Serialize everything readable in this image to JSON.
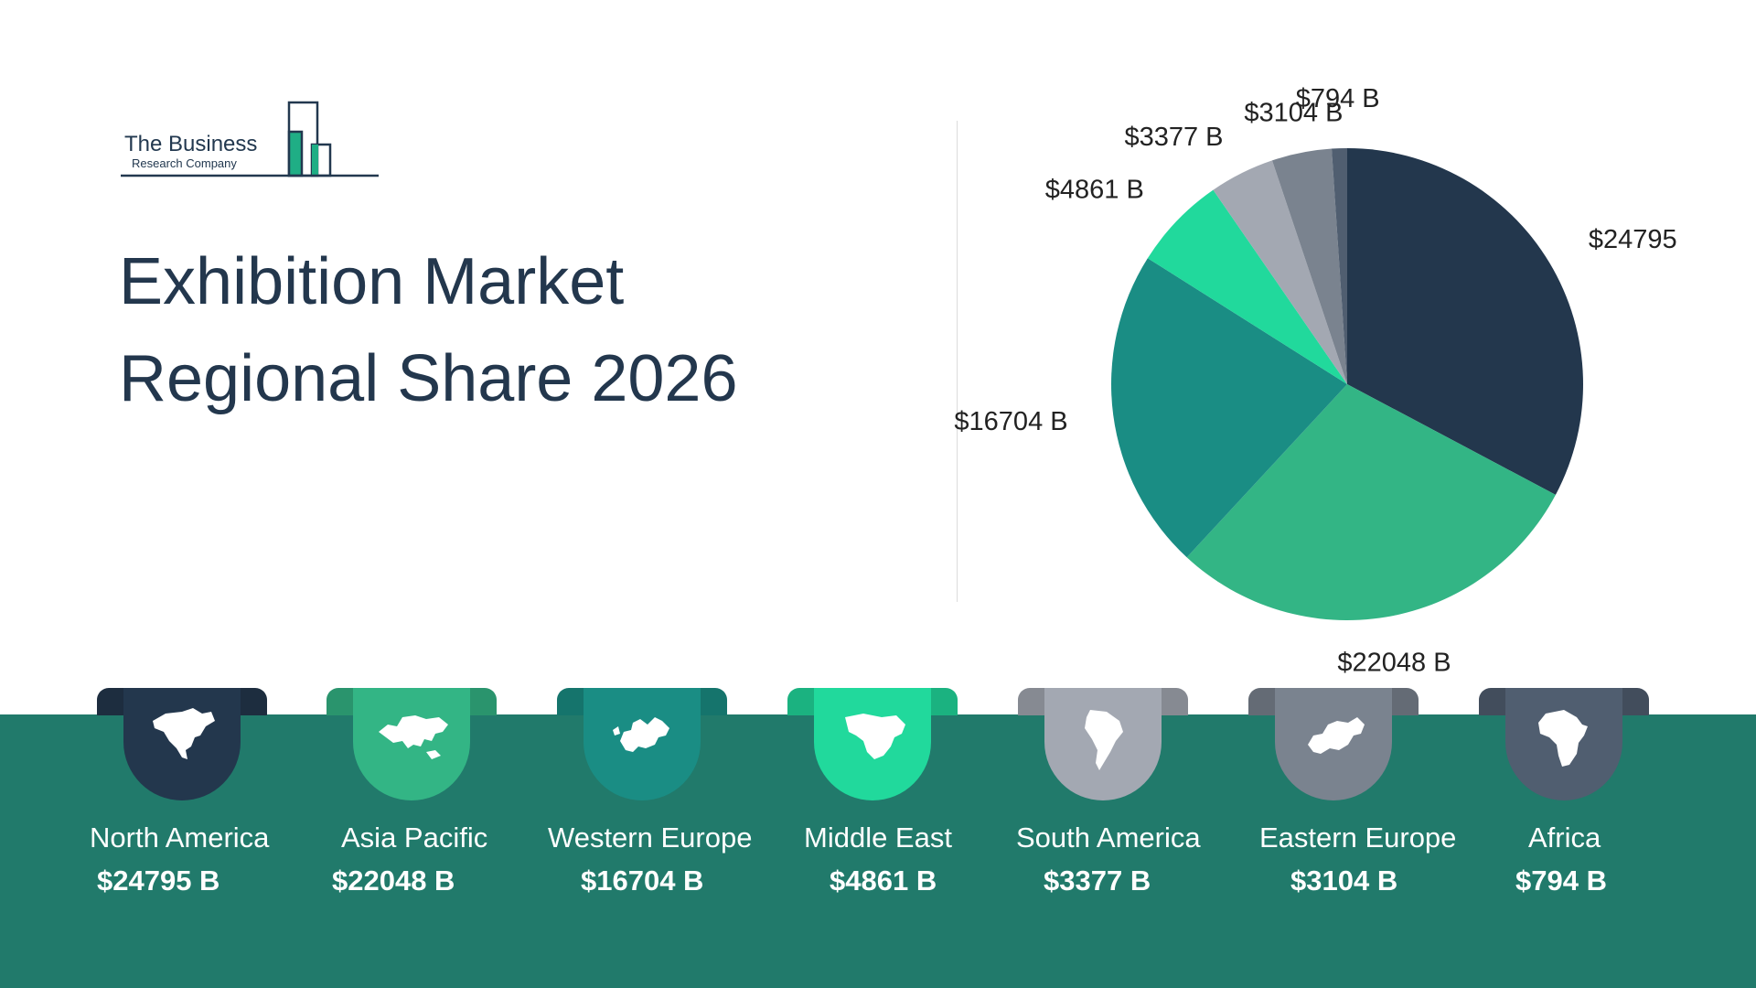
{
  "logo": {
    "line1": "The Business",
    "line2": "Research Company"
  },
  "title": {
    "line1": "Exhibition Market",
    "line2": "Regional Share 2026"
  },
  "colors": {
    "band": "#217a6b",
    "north_america": "#23374d",
    "asia_pacific": "#33b585",
    "western_europe": "#1a8d84",
    "middle_east": "#21d99c",
    "south_america": "#a3a8b2",
    "eastern_europe": "#7a838f",
    "africa": "#505e70"
  },
  "chart_data": {
    "type": "pie",
    "title": "Exhibition Market Regional Share 2026",
    "unit": "B",
    "slices": [
      {
        "label": "North America",
        "value": 24795,
        "display": "$24795 B",
        "color": "#23374d"
      },
      {
        "label": "Asia Pacific",
        "value": 22048,
        "display": "$22048 B",
        "color": "#33b585"
      },
      {
        "label": "Western Europe",
        "value": 16704,
        "display": "$16704 B",
        "color": "#1a8d84"
      },
      {
        "label": "Middle East",
        "value": 4861,
        "display": "$4861 B",
        "color": "#21d99c"
      },
      {
        "label": "South America",
        "value": 3377,
        "display": "$3377 B",
        "color": "#a3a8b2"
      },
      {
        "label": "Eastern Europe",
        "value": 3104,
        "display": "$3104 B",
        "color": "#7a838f"
      },
      {
        "label": "Africa",
        "value": 794,
        "display": "$794 B",
        "color": "#505e70"
      }
    ]
  },
  "regions": [
    {
      "name": "North America",
      "value": "$24795 B",
      "icon": "north-america-map-icon",
      "color": "#23374d"
    },
    {
      "name": "Asia Pacific",
      "value": "$22048 B",
      "icon": "asia-pacific-map-icon",
      "color": "#33b585"
    },
    {
      "name": "Western Europe",
      "value": "$16704 B",
      "icon": "western-europe-map-icon",
      "color": "#1a8d84"
    },
    {
      "name": "Middle East",
      "value": "$4861 B",
      "icon": "middle-east-map-icon",
      "color": "#21d99c"
    },
    {
      "name": "South America",
      "value": "$3377 B",
      "icon": "south-america-map-icon",
      "color": "#a3a8b2"
    },
    {
      "name": "Eastern Europe",
      "value": "$3104 B",
      "icon": "eastern-europe-map-icon",
      "color": "#7a838f"
    },
    {
      "name": "Africa",
      "value": "$794 B",
      "icon": "africa-map-icon",
      "color": "#505e70"
    }
  ]
}
